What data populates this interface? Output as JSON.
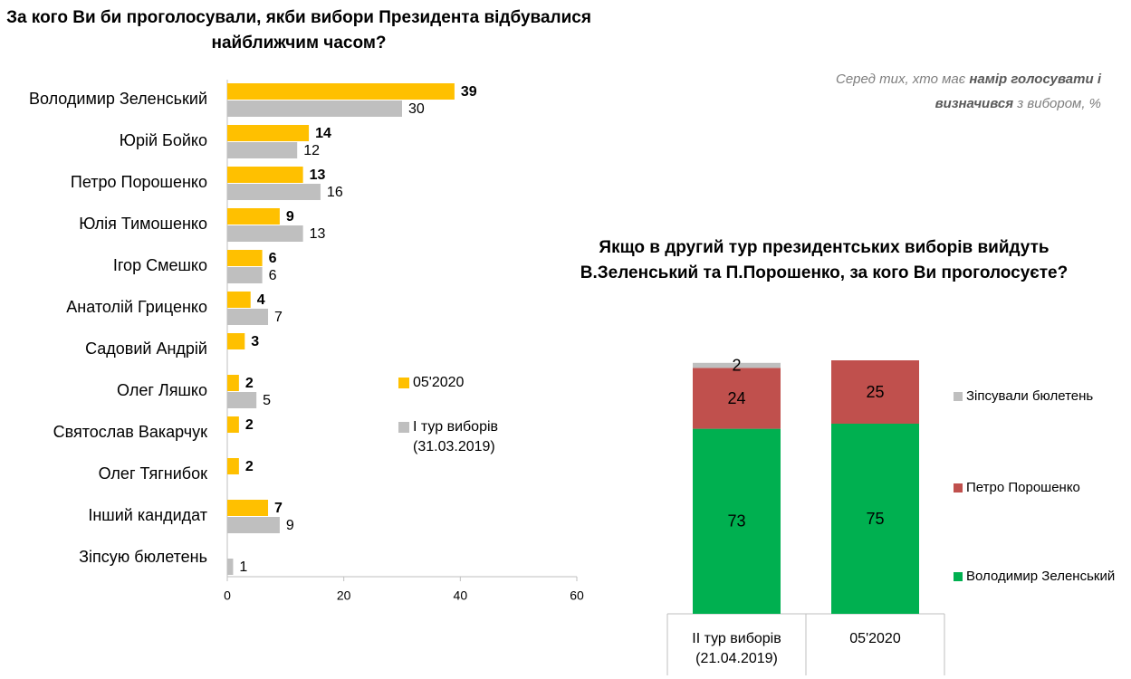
{
  "chart_data": [
    {
      "type": "hbar",
      "title": "За кого Ви би проголосували, якби вибори Президента відбувалися найближчим часом?",
      "note": [
        "Серед тих, хто має ",
        "намір голосувати і визначився",
        " з вибором, %"
      ],
      "categories": [
        "Володимир Зеленський",
        "Юрій Бойко",
        "Петро Порошенко",
        "Юлія Тимошенко",
        "Ігор Смешко",
        "Анатолій Гриценко",
        "Садовий Андрій",
        "Олег Ляшко",
        "Святослав Вакарчук",
        "Олег Тягнибок",
        "Інший кандидат",
        "Зіпсую бюлетень"
      ],
      "series": [
        {
          "name": "05'2020",
          "color": "#ffc000",
          "values": [
            39,
            14,
            13,
            9,
            6,
            4,
            3,
            2,
            2,
            2,
            7,
            null
          ]
        },
        {
          "name": "І тур виборів (31.03.2019)",
          "color": "#bfbfbf",
          "values": [
            30,
            12,
            16,
            13,
            6,
            7,
            null,
            5,
            null,
            null,
            9,
            1
          ]
        }
      ],
      "xlim": [
        0,
        60
      ],
      "xticks": [
        0,
        20,
        40,
        60
      ]
    },
    {
      "type": "stacked",
      "title": "Якщо в другий тур президентських виборів вийдуть В.Зеленський та П.Порошенко, за кого Ви проголосуєте?",
      "categories": [
        "ІІ тур виборів (21.04.2019)",
        "05'2020"
      ],
      "series": [
        {
          "name": "Володимир Зеленський",
          "color": "#00b050",
          "values": [
            73,
            75
          ]
        },
        {
          "name": "Петро Порошенко",
          "color": "#c0504d",
          "values": [
            24,
            25
          ]
        },
        {
          "name": "Зіпсували бюлетень",
          "color": "#bfbfbf",
          "values": [
            2,
            null
          ]
        }
      ]
    }
  ]
}
